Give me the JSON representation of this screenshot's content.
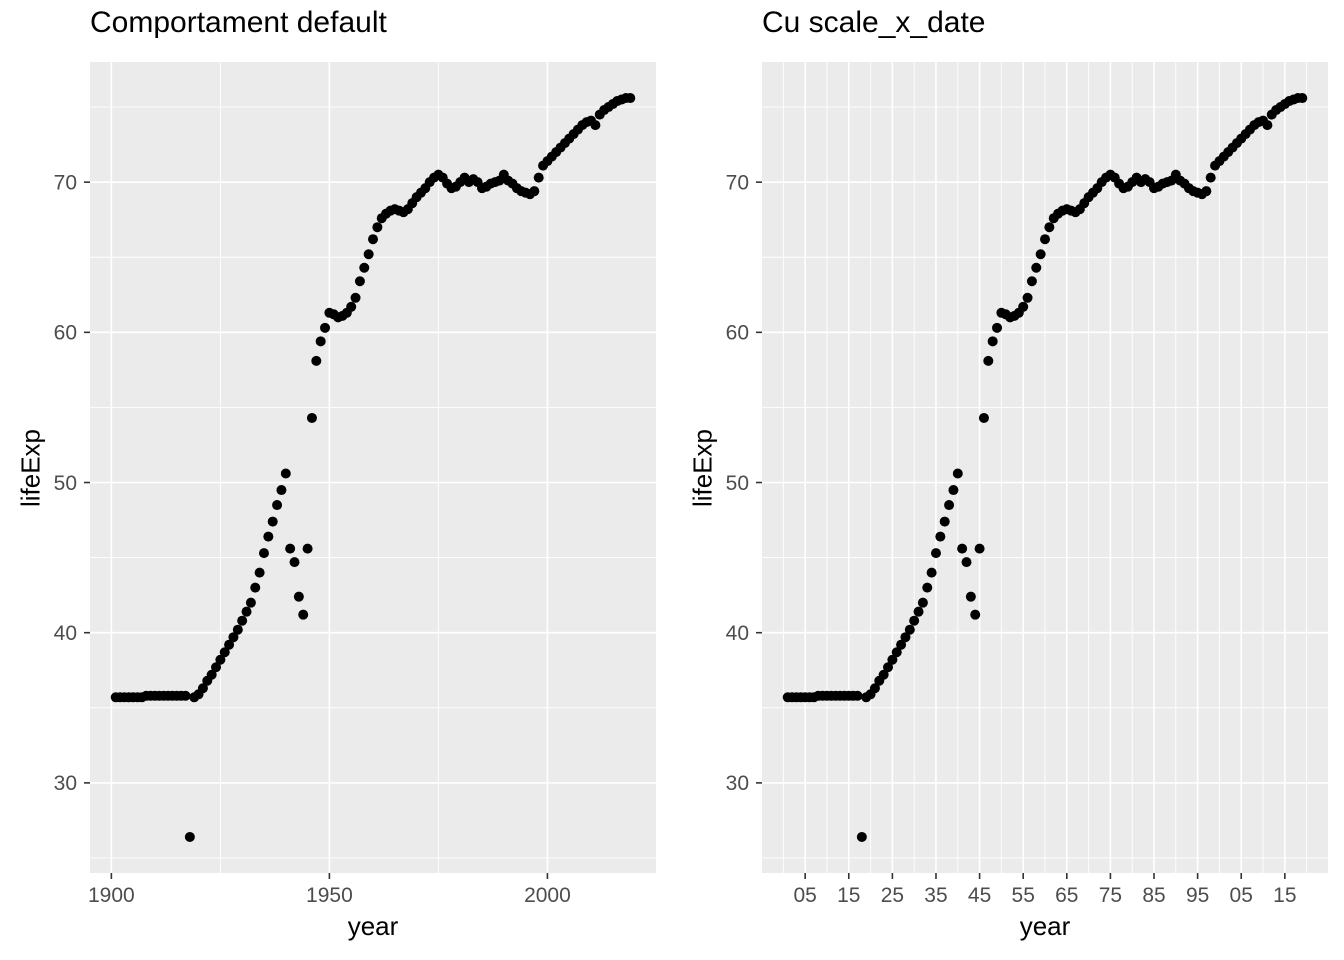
{
  "chart_data": {
    "type": "scatter",
    "series_name": "lifeExp",
    "point_color": "#000000",
    "panel_bg": "#EBEBEB",
    "grid_color": "#FFFFFF",
    "tick_mark_color": "#333333",
    "tick_label_color": "#4D4D4D",
    "title_color": "#000000",
    "xlim": [
      1895.1,
      2024.9
    ],
    "ylim": [
      24.0,
      78.0
    ],
    "y_major_ticks": [
      30,
      40,
      50,
      60,
      70
    ],
    "y_major_labels": [
      "30",
      "40",
      "50",
      "60",
      "70"
    ],
    "y_minor_ticks": [
      25,
      35,
      45,
      55,
      65,
      75
    ],
    "x": [
      1901,
      1902,
      1903,
      1904,
      1905,
      1906,
      1907,
      1908,
      1909,
      1910,
      1911,
      1912,
      1913,
      1914,
      1915,
      1916,
      1917,
      1918,
      1919,
      1920,
      1921,
      1922,
      1923,
      1924,
      1925,
      1926,
      1927,
      1928,
      1929,
      1930,
      1931,
      1932,
      1933,
      1934,
      1935,
      1936,
      1937,
      1938,
      1939,
      1940,
      1941,
      1942,
      1943,
      1944,
      1945,
      1946,
      1947,
      1948,
      1949,
      1950,
      1951,
      1952,
      1953,
      1954,
      1955,
      1956,
      1957,
      1958,
      1959,
      1960,
      1961,
      1962,
      1963,
      1964,
      1965,
      1966,
      1967,
      1968,
      1969,
      1970,
      1971,
      1972,
      1973,
      1974,
      1975,
      1976,
      1977,
      1978,
      1979,
      1980,
      1981,
      1982,
      1983,
      1984,
      1985,
      1986,
      1987,
      1988,
      1989,
      1990,
      1991,
      1992,
      1993,
      1994,
      1995,
      1996,
      1997,
      1998,
      1999,
      2000,
      2001,
      2002,
      2003,
      2004,
      2005,
      2006,
      2007,
      2008,
      2009,
      2010,
      2011,
      2012,
      2013,
      2014,
      2015,
      2016,
      2017,
      2018,
      2019
    ],
    "y": [
      35.7,
      35.7,
      35.7,
      35.7,
      35.7,
      35.7,
      35.7,
      35.8,
      35.8,
      35.8,
      35.8,
      35.8,
      35.8,
      35.8,
      35.8,
      35.8,
      35.8,
      26.4,
      35.7,
      35.9,
      36.3,
      36.8,
      37.2,
      37.7,
      38.2,
      38.7,
      39.2,
      39.7,
      40.2,
      40.8,
      41.4,
      42.0,
      43.0,
      44.0,
      45.3,
      46.4,
      47.4,
      48.5,
      49.5,
      50.6,
      45.6,
      44.7,
      42.4,
      41.2,
      45.6,
      54.3,
      58.1,
      59.4,
      60.3,
      61.3,
      61.2,
      61.0,
      61.1,
      61.3,
      61.7,
      62.3,
      63.4,
      64.3,
      65.2,
      66.2,
      67.0,
      67.6,
      67.9,
      68.1,
      68.2,
      68.1,
      68.0,
      68.2,
      68.6,
      69.0,
      69.3,
      69.6,
      70.0,
      70.3,
      70.5,
      70.3,
      69.9,
      69.6,
      69.7,
      70.0,
      70.3,
      70.0,
      70.2,
      70.0,
      69.6,
      69.7,
      69.9,
      70.0,
      70.1,
      70.5,
      70.1,
      69.9,
      69.6,
      69.4,
      69.3,
      69.2,
      69.4,
      70.3,
      71.1,
      71.4,
      71.7,
      72.0,
      72.3,
      72.6,
      72.9,
      73.2,
      73.5,
      73.8,
      74.0,
      74.1,
      73.8,
      74.5,
      74.8,
      75.0,
      75.2,
      75.4,
      75.5,
      75.6,
      75.6
    ],
    "panels": [
      {
        "title": "Comportament default",
        "xlabel": "year",
        "ylabel": "lifeExp",
        "x_scale": "continuous",
        "x_major_ticks": [
          1900,
          1950,
          2000
        ],
        "x_major_labels": [
          "1900",
          "1950",
          "2000"
        ],
        "x_minor_ticks": [
          1925,
          1975,
          2025
        ]
      },
      {
        "title": "Cu scale_x_date",
        "xlabel": "year",
        "ylabel": "lifeExp",
        "x_scale": "date",
        "x_major_ticks": [
          1905,
          1915,
          1925,
          1935,
          1945,
          1955,
          1965,
          1975,
          1985,
          1995,
          2005,
          2015
        ],
        "x_major_labels": [
          "05",
          "15",
          "25",
          "35",
          "45",
          "55",
          "65",
          "75",
          "85",
          "95",
          "05",
          "15"
        ],
        "x_minor_ticks": [
          1900,
          1910,
          1920,
          1930,
          1940,
          1950,
          1960,
          1970,
          1980,
          1990,
          2000,
          2010,
          2020
        ]
      }
    ]
  }
}
